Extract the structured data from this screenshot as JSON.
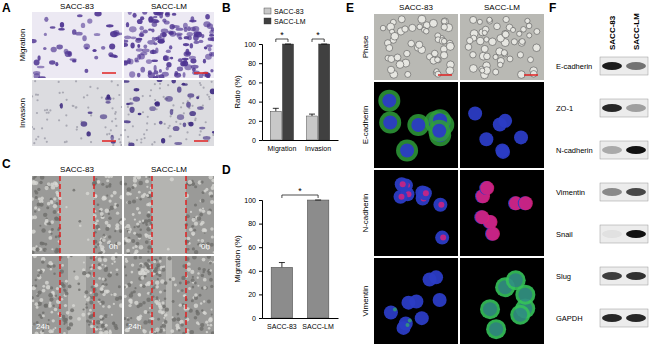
{
  "chart_data": [
    {
      "type": "bar",
      "categories": [
        "Migration",
        "Invasion"
      ],
      "series": [
        {
          "name": "SACC-83",
          "color": "#c8c8c8",
          "values": [
            30,
            25
          ],
          "errors": [
            3,
            2
          ]
        },
        {
          "name": "SACC-LM",
          "color": "#404040",
          "values": [
            100,
            100
          ],
          "errors": [
            0,
            0
          ]
        }
      ],
      "ylim": [
        0,
        100
      ],
      "yticks": [
        0,
        20,
        40,
        60,
        80,
        100
      ],
      "ylabel": "Ratio (%)",
      "legend": "upper left",
      "annotations": [
        "*",
        "*"
      ]
    },
    {
      "type": "bar",
      "categories": [
        "SACC-83",
        "SACC-LM"
      ],
      "values": [
        43,
        100
      ],
      "errors": [
        4,
        0
      ],
      "color": "#8c8c8c",
      "ylim": [
        0,
        100
      ],
      "yticks": [
        0,
        20,
        40,
        60,
        80,
        100
      ],
      "ylabel": "Migration (%)",
      "annotations": [
        "*"
      ]
    }
  ],
  "panels": {
    "labels": [
      "A",
      "B",
      "C",
      "D",
      "E",
      "F"
    ],
    "A": {
      "columns": [
        "SACC-83",
        "SACC-LM"
      ],
      "rows": [
        "Migration",
        "Invasion"
      ]
    },
    "C": {
      "columns": [
        "SACC-83",
        "SACC-LM"
      ],
      "times": [
        "0h",
        "24h"
      ]
    },
    "E": {
      "columns": [
        "SACC-83",
        "SACC-LM"
      ],
      "rows": [
        "Phase",
        "E-cadherin",
        "N-cadherin",
        "Vimentin"
      ]
    },
    "F": {
      "columns": [
        "SACC-83",
        "SACC-LM"
      ],
      "rows": [
        "E-cadherin",
        "ZO-1",
        "N-cadherin",
        "Vimentin",
        "Snail",
        "Slug",
        "GAPDH"
      ]
    }
  }
}
